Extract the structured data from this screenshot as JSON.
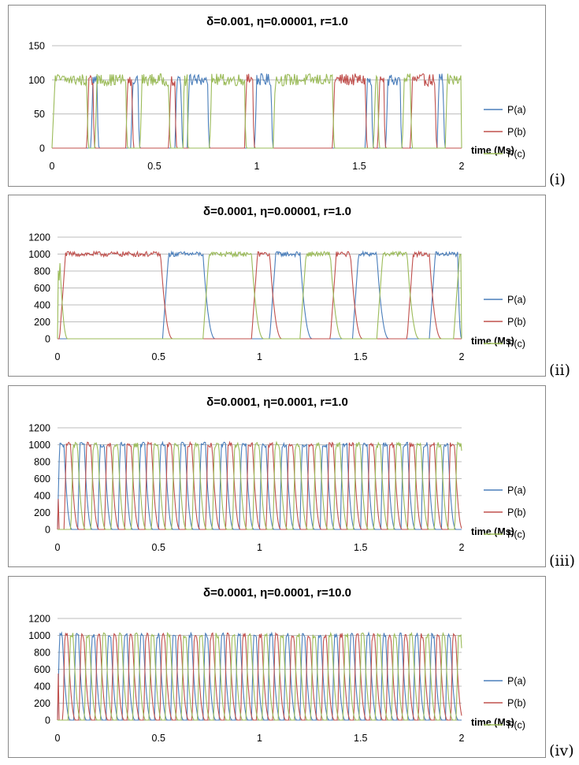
{
  "chart_data": [
    {
      "type": "line",
      "title": "δ=0.001, η=0.00001, r=1.0",
      "xlabel": "time (Ms)",
      "ylabel": "",
      "xlim": [
        0,
        2
      ],
      "ylim": [
        0,
        150
      ],
      "xticks": [
        0,
        0.5,
        1,
        1.5,
        2
      ],
      "yticks": [
        0,
        50,
        100,
        150
      ],
      "grid": true,
      "legend": "right",
      "panel_label": "(i)",
      "series": [
        {
          "name": "P(a)",
          "color": "#4a7ebb",
          "intervals": [
            [
              0.19,
              0.2,
              0.22,
              0.23
            ],
            [
              0.385,
              0.395,
              0.42,
              0.43
            ],
            [
              0.6,
              0.61,
              0.63,
              0.64
            ],
            [
              0.66,
              0.67,
              0.76,
              0.77
            ],
            [
              0.99,
              1.0,
              1.07,
              1.08
            ],
            [
              1.53,
              1.54,
              1.56,
              1.57
            ],
            [
              1.63,
              1.64,
              1.7,
              1.71
            ],
            [
              1.88,
              1.89,
              1.91,
              1.92
            ]
          ],
          "base": 100,
          "level": 1
        },
        {
          "name": "P(b)",
          "color": "#c0504d",
          "intervals": [
            [
              0.17,
              0.18,
              0.2,
              0.21
            ],
            [
              0.36,
              0.37,
              0.39,
              0.4
            ],
            [
              0.57,
              0.58,
              0.6,
              0.61
            ],
            [
              0.94,
              0.95,
              0.98,
              0.99
            ],
            [
              1.37,
              1.38,
              1.53,
              1.54
            ],
            [
              1.59,
              1.6,
              1.62,
              1.63
            ],
            [
              1.75,
              1.76,
              1.87,
              1.88
            ]
          ],
          "base": 100,
          "level": 1
        },
        {
          "name": "P(c)",
          "color": "#9bbb59",
          "intervals": [
            [
              0.0,
              0.015,
              0.17,
              0.18
            ],
            [
              0.21,
              0.22,
              0.36,
              0.37
            ],
            [
              0.43,
              0.44,
              0.57,
              0.58
            ],
            [
              0.64,
              0.645,
              0.66,
              0.665
            ],
            [
              0.77,
              0.78,
              0.94,
              0.95
            ],
            [
              1.08,
              1.09,
              1.37,
              1.38
            ],
            [
              1.57,
              1.58,
              1.59,
              1.6
            ],
            [
              1.71,
              1.72,
              1.75,
              1.76
            ],
            [
              1.92,
              1.93,
              2.0,
              2.0
            ]
          ],
          "base": 100,
          "level": 1
        }
      ]
    },
    {
      "type": "line",
      "title": "δ=0.0001, η=0.00001, r=1.0",
      "xlabel": "time (Ms)",
      "ylabel": "",
      "xlim": [
        0,
        2
      ],
      "ylim": [
        0,
        1200
      ],
      "xticks": [
        0,
        0.5,
        1,
        1.5,
        2
      ],
      "yticks": [
        0,
        200,
        400,
        600,
        800,
        1000,
        1200
      ],
      "grid": true,
      "legend": "right",
      "panel_label": "(ii)",
      "series": [
        {
          "name": "P(a)",
          "color": "#4a7ebb",
          "intervals": [
            [
              0.52,
              0.55,
              0.72,
              0.78
            ],
            [
              1.05,
              1.08,
              1.2,
              1.26
            ],
            [
              1.46,
              1.49,
              1.58,
              1.64
            ],
            [
              1.84,
              1.87,
              1.98,
              2.0
            ]
          ],
          "base": 1000,
          "level": 1
        },
        {
          "name": "P(b)",
          "color": "#c0504d",
          "intervals": [
            [
              0.01,
              0.04,
              0.51,
              0.57
            ],
            [
              0.96,
              0.99,
              1.05,
              1.11
            ],
            [
              1.35,
              1.38,
              1.45,
              1.51
            ],
            [
              1.73,
              1.76,
              1.84,
              1.9
            ]
          ],
          "base": 1000,
          "level": 1
        },
        {
          "name": "P(c)",
          "color": "#9bbb59",
          "intervals": [
            [
              0.0,
              0.005,
              0.01,
              0.05
            ],
            [
              0.72,
              0.75,
              0.96,
              1.02
            ],
            [
              1.2,
              1.23,
              1.35,
              1.41
            ],
            [
              1.58,
              1.61,
              1.73,
              1.79
            ],
            [
              1.96,
              1.99,
              2.0,
              2.0
            ]
          ],
          "base": 1000,
          "level": 1,
          "spike": [
            0.008,
            690
          ]
        }
      ]
    },
    {
      "type": "line",
      "title": "δ=0.0001, η=0.0001, r=1.0",
      "xlabel": "time (Ms)",
      "ylabel": "",
      "xlim": [
        0,
        2
      ],
      "ylim": [
        0,
        1200
      ],
      "xticks": [
        0,
        0.5,
        1,
        1.5,
        2
      ],
      "yticks": [
        0,
        200,
        400,
        600,
        800,
        1000,
        1200
      ],
      "grid": true,
      "legend": "right",
      "panel_label": "(iii)",
      "period": 0.1,
      "duty": 0.37,
      "order": [
        "P(a)",
        "P(b)",
        "P(c)"
      ],
      "series": [
        {
          "name": "P(a)",
          "color": "#4a7ebb",
          "base": 1000
        },
        {
          "name": "P(b)",
          "color": "#c0504d",
          "base": 1000,
          "spike": [
            0.005,
            360
          ]
        },
        {
          "name": "P(c)",
          "color": "#9bbb59",
          "base": 1000
        }
      ]
    },
    {
      "type": "line",
      "title": "δ=0.0001, η=0.0001, r=10.0",
      "xlabel": "time (Ms)",
      "ylabel": "",
      "xlim": [
        0,
        2
      ],
      "ylim": [
        0,
        1200
      ],
      "xticks": [
        0,
        0.5,
        1,
        1.5,
        2
      ],
      "yticks": [
        0,
        200,
        400,
        600,
        800,
        1000,
        1200
      ],
      "grid": true,
      "legend": "right",
      "panel_label": "(iv)",
      "period": 0.08,
      "duty": 0.36,
      "order": [
        "P(a)",
        "P(b)",
        "P(c)"
      ],
      "series": [
        {
          "name": "P(a)",
          "color": "#4a7ebb",
          "base": 1000
        },
        {
          "name": "P(b)",
          "color": "#c0504d",
          "base": 1000,
          "spike": [
            0.005,
            550
          ]
        },
        {
          "name": "P(c)",
          "color": "#9bbb59",
          "base": 1000
        }
      ]
    }
  ]
}
